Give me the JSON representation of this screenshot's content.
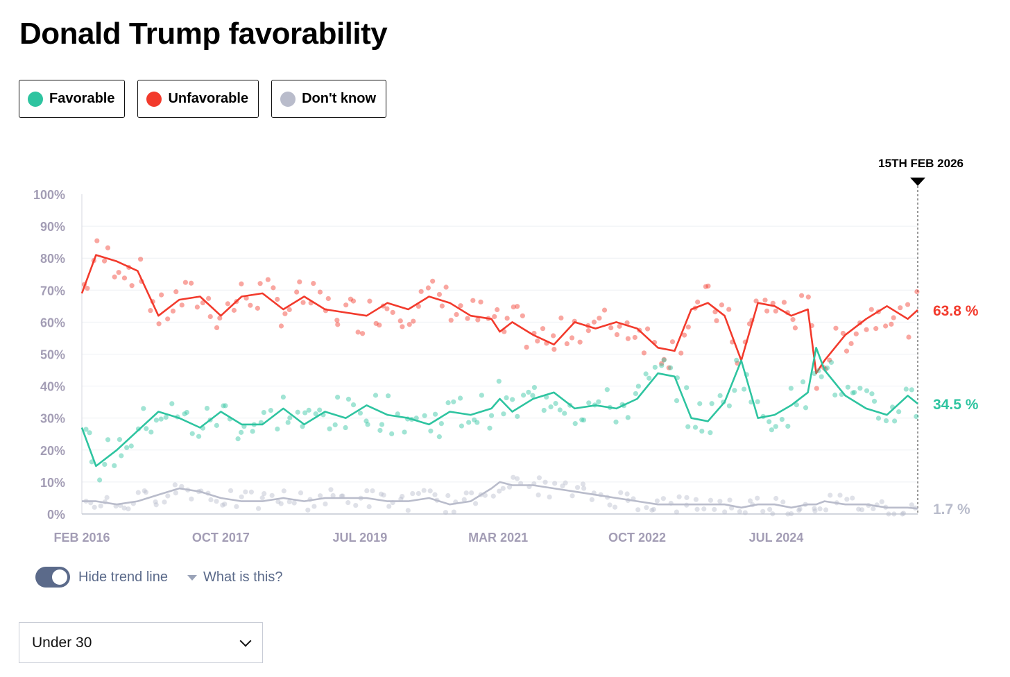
{
  "title": "Donald Trump favorability",
  "legend": [
    {
      "label": "Favorable",
      "color": "#2ec4a0"
    },
    {
      "label": "Unfavorable",
      "color": "#f23a2c"
    },
    {
      "label": "Don't know",
      "color": "#b9bccb"
    }
  ],
  "controls": {
    "toggle_label": "Hide trend line",
    "help_label": "What is this?",
    "select_value": "Under 30"
  },
  "chart_data": {
    "type": "line",
    "title": "Donald Trump favorability",
    "xlabel": "",
    "ylabel": "",
    "ylim": [
      0,
      100
    ],
    "yticks": [
      "100%",
      "90%",
      "80%",
      "70%",
      "60%",
      "50%",
      "40%",
      "30%",
      "20%",
      "10%",
      "0%"
    ],
    "xticks": [
      "FEB 2016",
      "OCT 2017",
      "JUL 2019",
      "MAR 2021",
      "OCT 2022",
      "JUL 2024"
    ],
    "x_range": [
      2016.08,
      2026.12
    ],
    "date_marker": "15TH FEB 2026",
    "x": [
      2016.08,
      2016.25,
      2016.5,
      2016.75,
      2017.0,
      2017.25,
      2017.5,
      2017.75,
      2018.0,
      2018.25,
      2018.5,
      2018.75,
      2019.0,
      2019.25,
      2019.5,
      2019.75,
      2020.0,
      2020.25,
      2020.5,
      2020.75,
      2021.0,
      2021.1,
      2021.25,
      2021.5,
      2021.75,
      2022.0,
      2022.25,
      2022.5,
      2022.75,
      2023.0,
      2023.2,
      2023.4,
      2023.6,
      2023.8,
      2024.0,
      2024.2,
      2024.4,
      2024.6,
      2024.8,
      2024.9,
      2025.0,
      2025.25,
      2025.5,
      2025.75,
      2026.0,
      2026.12
    ],
    "series": [
      {
        "name": "Unfavorable",
        "color": "#f23a2c",
        "end_label": "63.8 %",
        "values": [
          69,
          81,
          79,
          76,
          62,
          67,
          68,
          62,
          68,
          69,
          64,
          68,
          64,
          63,
          62,
          66,
          64,
          68,
          66,
          62,
          61,
          57,
          60,
          56,
          53,
          60,
          58,
          60,
          58,
          52,
          51,
          64,
          66,
          62,
          48,
          66,
          65,
          62,
          64,
          44,
          48,
          56,
          61,
          65,
          61,
          63.8
        ]
      },
      {
        "name": "Favorable",
        "color": "#2ec4a0",
        "end_label": "34.5 %",
        "values": [
          27,
          15,
          20,
          26,
          32,
          30,
          27,
          32,
          28,
          28,
          33,
          28,
          32,
          30,
          34,
          31,
          30,
          28,
          32,
          31,
          33,
          36,
          32,
          36,
          38,
          33,
          34,
          33,
          36,
          44,
          43,
          30,
          29,
          35,
          48,
          30,
          31,
          34,
          38,
          52,
          45,
          37,
          33,
          31,
          37,
          34.5
        ]
      },
      {
        "name": "Don't know",
        "color": "#b9bccb",
        "end_label": "1.7 %",
        "values": [
          4,
          4,
          3,
          4,
          6,
          8,
          7,
          5,
          4,
          4,
          5,
          4,
          5,
          5,
          5,
          4,
          4,
          5,
          3,
          4,
          8,
          10,
          9,
          9,
          8,
          7,
          6,
          5,
          4,
          3,
          3,
          3,
          3,
          3,
          2,
          3,
          3,
          2,
          3,
          3,
          4,
          3,
          3,
          2,
          2,
          1.7
        ]
      }
    ]
  }
}
